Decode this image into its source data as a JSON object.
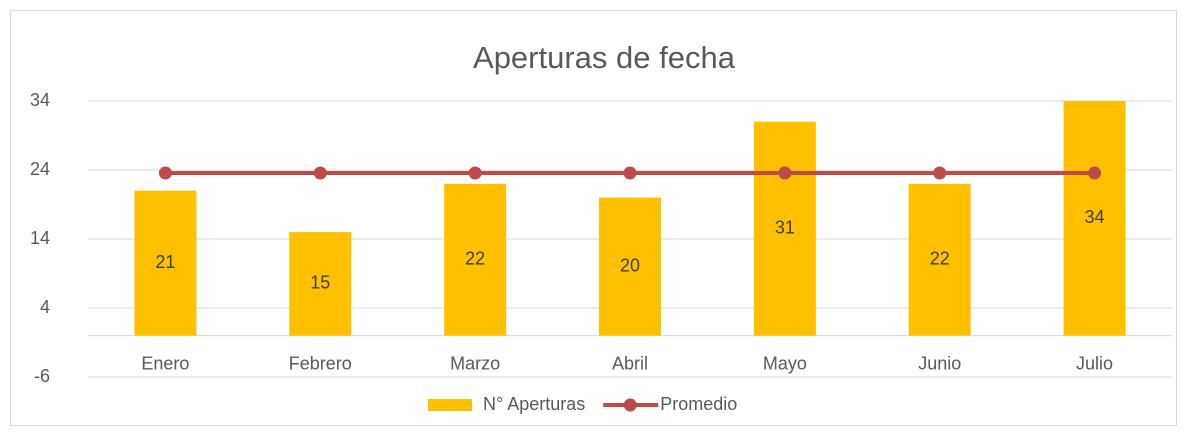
{
  "chart_data": {
    "type": "combo",
    "title": "Aperturas de fecha",
    "categories": [
      "Enero",
      "Febrero",
      "Marzo",
      "Abril",
      "Mayo",
      "Junio",
      "Julio"
    ],
    "series": [
      {
        "name": "N° Aperturas",
        "type": "bar",
        "color": "#FFC000",
        "values": [
          21,
          15,
          22,
          20,
          31,
          22,
          34
        ]
      },
      {
        "name": "Promedio",
        "type": "line",
        "color": "#BE4B48",
        "values": [
          23.57,
          23.57,
          23.57,
          23.57,
          23.57,
          23.57,
          23.57
        ]
      }
    ],
    "ylim": [
      -6,
      34
    ],
    "yticks": [
      -6,
      4,
      14,
      24,
      34
    ],
    "grid": true,
    "legend": "bottom"
  }
}
